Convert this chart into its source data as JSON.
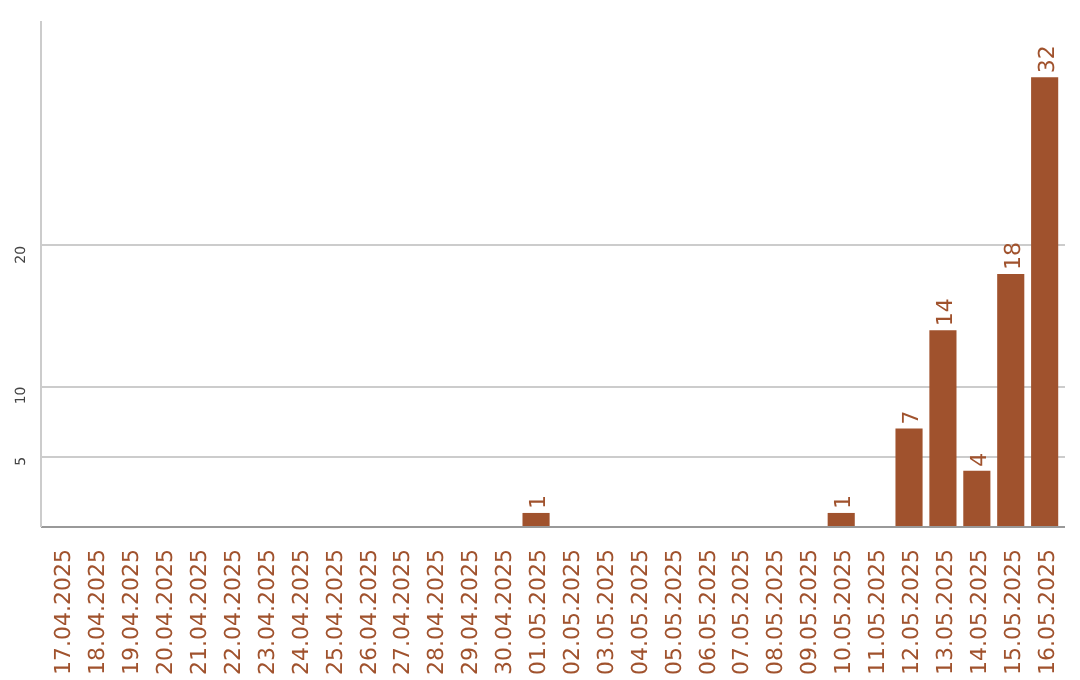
{
  "chart_data": {
    "type": "bar",
    "categories": [
      "17.04.2025",
      "18.04.2025",
      "19.04.2025",
      "20.04.2025",
      "21.04.2025",
      "22.04.2025",
      "23.04.2025",
      "24.04.2025",
      "25.04.2025",
      "26.04.2025",
      "27.04.2025",
      "28.04.2025",
      "29.04.2025",
      "30.04.2025",
      "01.05.2025",
      "02.05.2025",
      "03.05.2025",
      "04.05.2025",
      "05.05.2025",
      "06.05.2025",
      "07.05.2025",
      "08.05.2025",
      "09.05.2025",
      "10.05.2025",
      "11.05.2025",
      "12.05.2025",
      "13.05.2025",
      "14.05.2025",
      "15.05.2025",
      "16.05.2025"
    ],
    "values": [
      0,
      0,
      0,
      0,
      0,
      0,
      0,
      0,
      0,
      0,
      0,
      0,
      0,
      0,
      1,
      0,
      0,
      0,
      0,
      0,
      0,
      0,
      0,
      1,
      0,
      7,
      14,
      4,
      18,
      32
    ],
    "value_labels": [
      null,
      null,
      null,
      null,
      null,
      null,
      null,
      null,
      null,
      null,
      null,
      null,
      null,
      null,
      "1",
      null,
      null,
      null,
      null,
      null,
      null,
      null,
      null,
      "1",
      null,
      "7",
      "14",
      "4",
      "18",
      "32"
    ],
    "color": "#a0522d",
    "ylim": [
      0,
      36
    ],
    "yticks": [
      5,
      10,
      20
    ],
    "grid": "y"
  }
}
